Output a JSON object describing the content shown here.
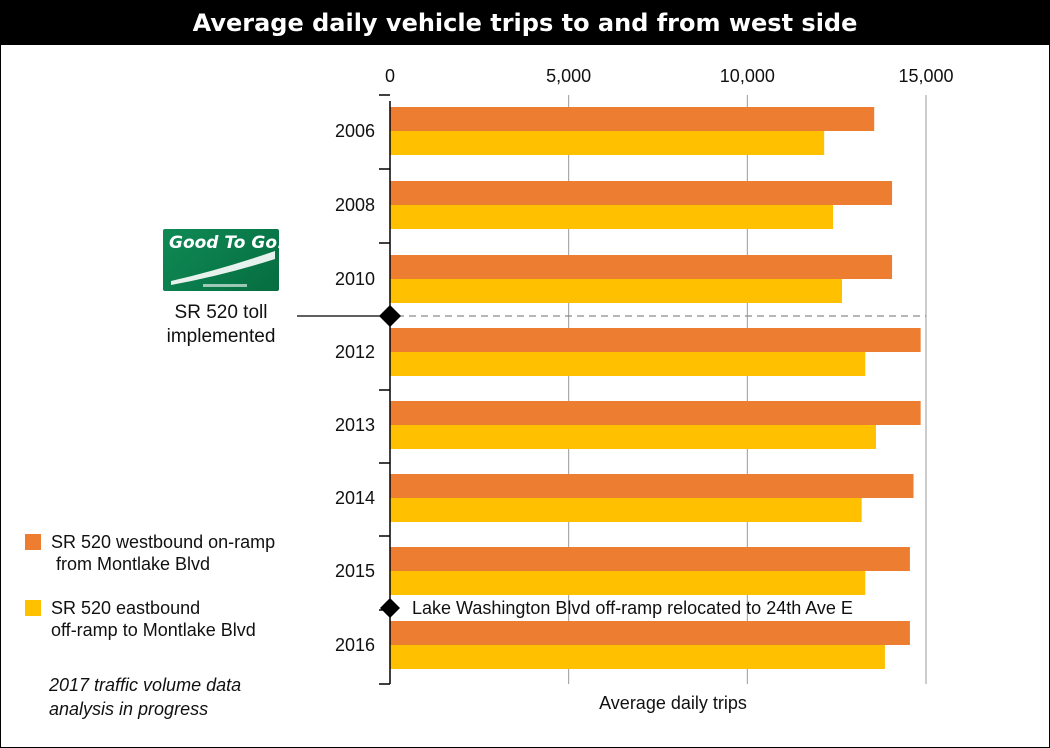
{
  "header": {
    "title": "Average daily vehicle trips to and from west side"
  },
  "logo": {
    "text": "Good To Go!"
  },
  "toll_event": {
    "label_line1": "SR 520 toll",
    "label_line2": "implemented"
  },
  "relocation_event": {
    "label": "Lake Washington Blvd off-ramp relocated to 24th Ave E"
  },
  "legend": {
    "items": [
      {
        "line1": "SR 520 westbound on-ramp",
        "line2": " from Montlake Blvd",
        "color": "#ED7D31"
      },
      {
        "line1": "SR 520 eastbound",
        "line2": "off-ramp to Montlake Blvd",
        "color": "#FFC000"
      }
    ]
  },
  "footnote": {
    "line1": "2017 traffic volume data",
    "line2": "analysis in progress"
  },
  "chart_data": {
    "type": "bar",
    "orientation": "horizontal",
    "title": "Average daily vehicle trips to and from west side",
    "xlabel": "Average daily trips",
    "ylabel": "",
    "xlim": [
      0,
      15000
    ],
    "x_ticks": [
      0,
      5000,
      10000,
      15000
    ],
    "x_tick_labels": [
      "0",
      "5,000",
      "10,000",
      "15,000"
    ],
    "categories": [
      "2006",
      "2008",
      "2010",
      "2012",
      "2013",
      "2014",
      "2015",
      "2016"
    ],
    "series": [
      {
        "name": "SR 520 westbound on-ramp from Montlake Blvd",
        "color": "#ED7D31",
        "values": [
          13550,
          14050,
          14050,
          14850,
          14850,
          14650,
          14550,
          14550
        ]
      },
      {
        "name": "SR 520 eastbound off-ramp to Montlake Blvd",
        "color": "#FFC000",
        "values": [
          12150,
          12400,
          12650,
          13300,
          13600,
          13200,
          13300,
          13850
        ]
      }
    ],
    "grid": true,
    "legend_position": "left",
    "annotations": [
      {
        "text": "SR 520 toll implemented",
        "between": [
          "2010",
          "2012"
        ]
      },
      {
        "text": "Lake Washington Blvd off-ramp relocated to 24th Ave E",
        "between": [
          "2015",
          "2016"
        ]
      }
    ]
  }
}
